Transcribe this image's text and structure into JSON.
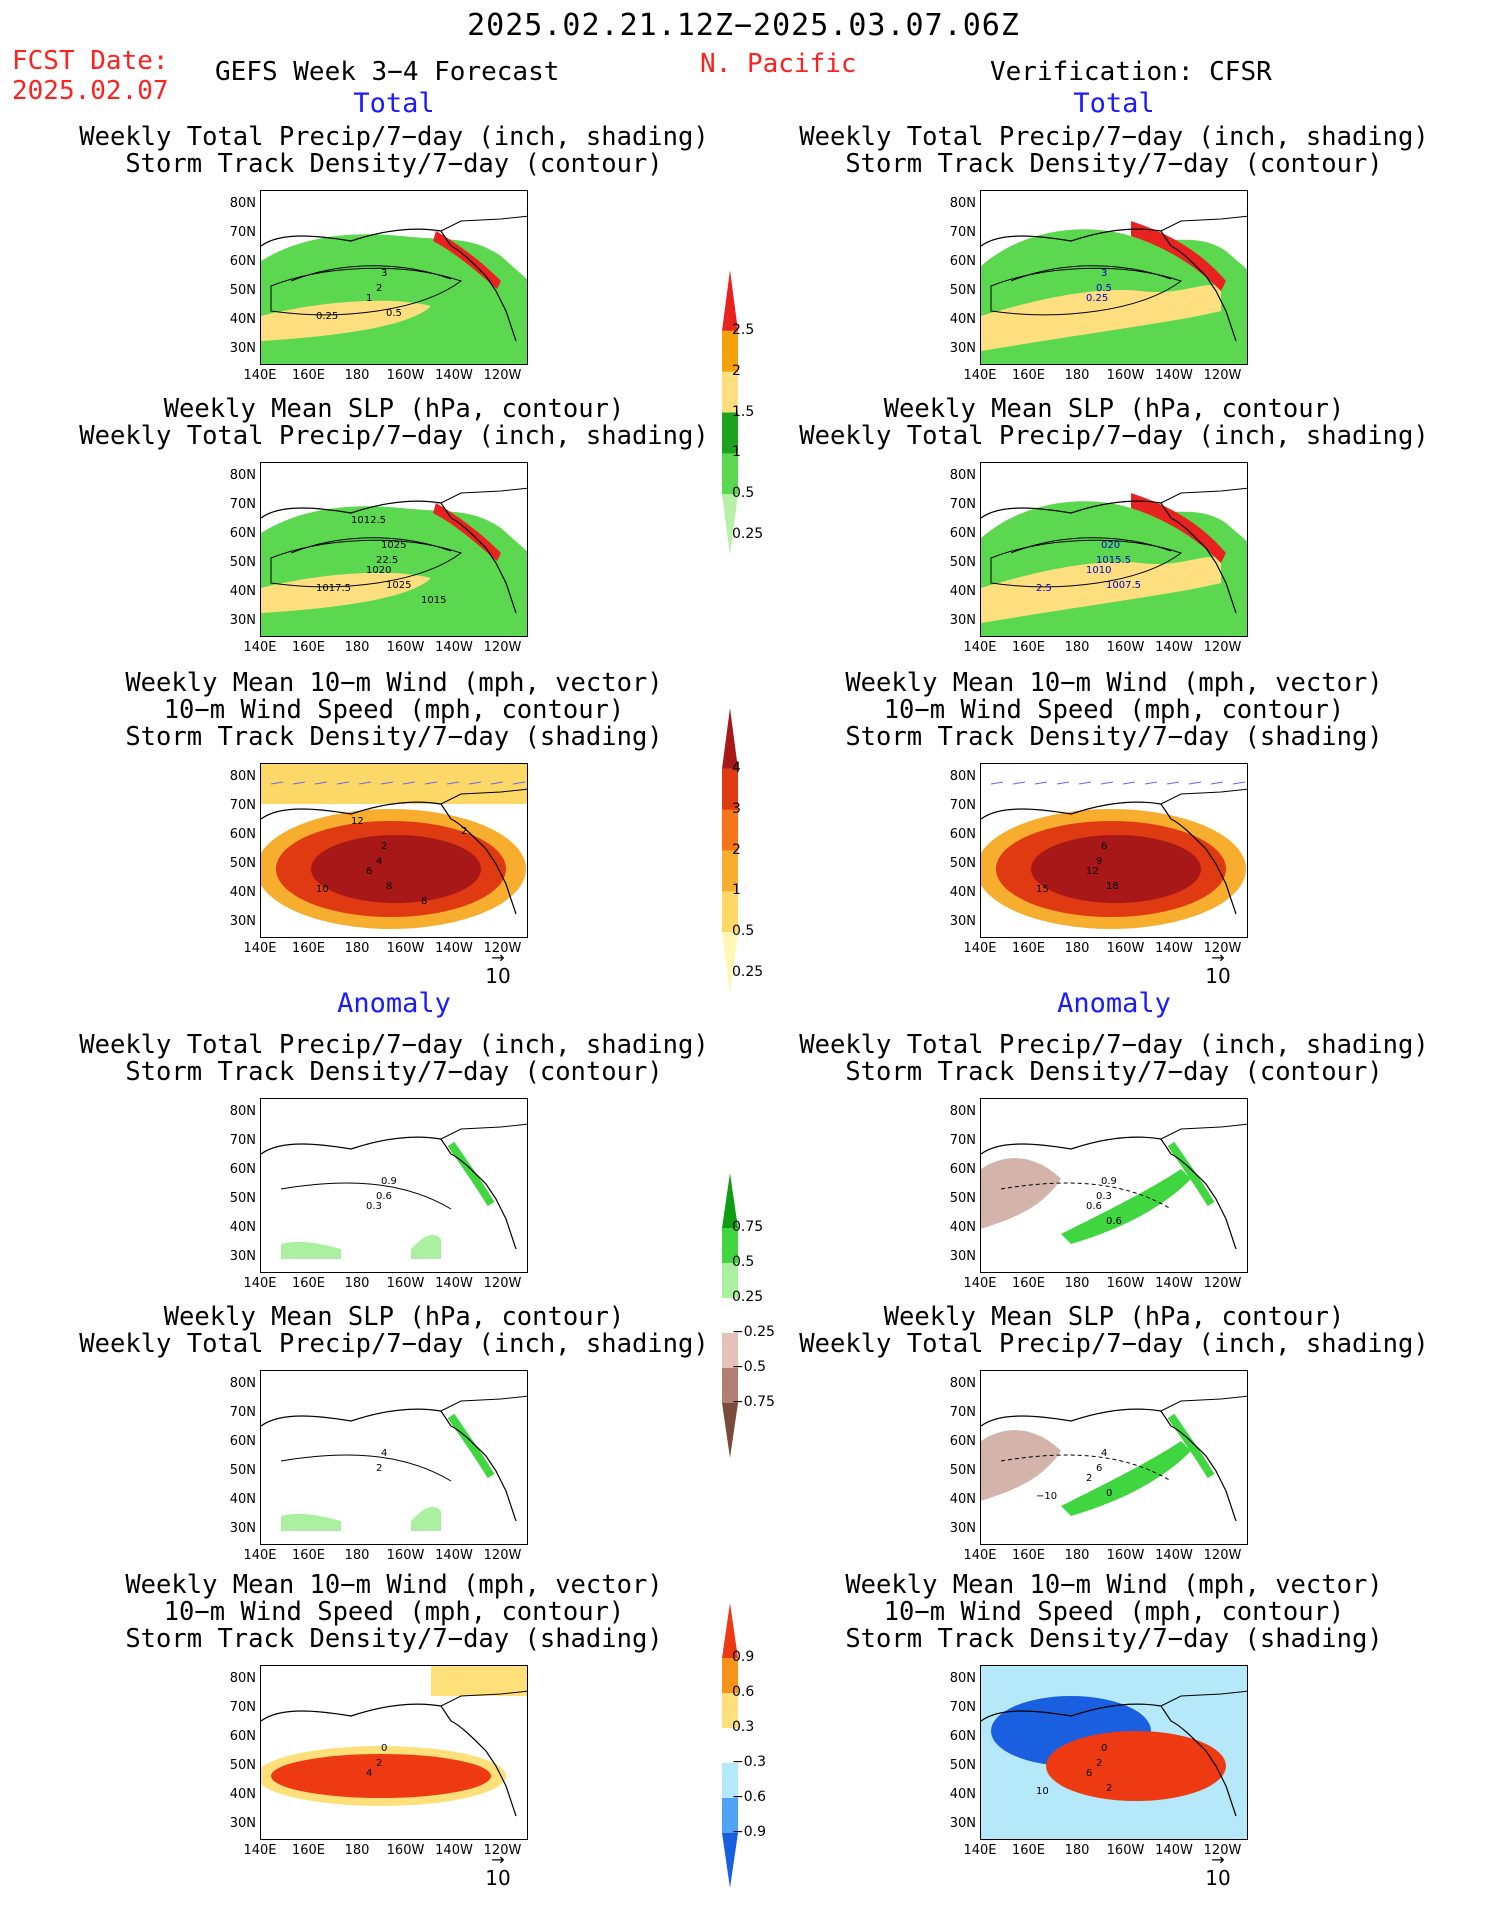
{
  "header": {
    "date_range": "2025.02.21.12Z−2025.03.07.06Z",
    "fcst_label": "FCST Date:",
    "fcst_date": "2025.02.07",
    "forecast_title": "GEFS Week 3−4 Forecast",
    "region": "N. Pacific",
    "verification": "Verification: CFSR"
  },
  "sections": {
    "total": "Total",
    "anomaly": "Anomaly"
  },
  "panels": {
    "precip_std": [
      "Weekly Total Precip/7−day (inch, shading)",
      "Storm Track Density/7−day (contour)"
    ],
    "slp_precip": [
      "Weekly Mean SLP (hPa, contour)",
      "Weekly Total Precip/7−day (inch, shading)"
    ],
    "wind_std": [
      "Weekly Mean 10−m Wind (mph, vector)",
      "10−m Wind Speed (mph, contour)",
      "Storm Track Density/7−day (shading)"
    ]
  },
  "axes": {
    "lat_labels": [
      "80N",
      "70N",
      "60N",
      "50N",
      "40N",
      "30N"
    ],
    "lon_labels": [
      "140E",
      "160E",
      "180",
      "160W",
      "140W",
      "120W"
    ]
  },
  "ref_vector": "10",
  "colorbars": {
    "precip_total": {
      "labels": [
        "2.5",
        "2",
        "1.5",
        "1",
        "0.5",
        "0.25"
      ],
      "colors": [
        "#e8221e",
        "#f5a20a",
        "#fddf7f",
        "#1fa21f",
        "#5bd84f",
        "#b8f0a8"
      ]
    },
    "std_total": {
      "labels": [
        "4",
        "3",
        "2",
        "1",
        "0.5",
        "0.25"
      ],
      "colors": [
        "#a81818",
        "#e03a12",
        "#f5761a",
        "#f7ad2e",
        "#fcd867",
        "#fff7b3"
      ]
    },
    "precip_anom": {
      "labels": [
        "0.75",
        "0.5",
        "0.25",
        "−0.25",
        "−0.5",
        "−0.75"
      ],
      "colors": [
        "#0f9e12",
        "#40d640",
        "#aaf0a0",
        "#ffffff",
        "#e5c2b9",
        "#b28072",
        "#7a4b3a"
      ]
    },
    "std_anom": {
      "labels": [
        "0.9",
        "0.6",
        "0.3",
        "−0.3",
        "−0.6",
        "−0.9"
      ],
      "colors": [
        "#ee3a12",
        "#f7931a",
        "#fde07a",
        "#ffffff",
        "#b5e8f8",
        "#4ea4f2",
        "#1a5fe0"
      ]
    }
  },
  "contour_labels": {
    "p1L": [
      "3",
      "2",
      "1",
      "0.5",
      "0.25"
    ],
    "p1R": [
      "3",
      "0.5",
      "0.25"
    ],
    "p2L": [
      "1025",
      "22.5",
      "1020",
      "1025",
      "1017.5",
      "1012.5",
      "1015"
    ],
    "p2R": [
      "020",
      "1015.5",
      "1010",
      "1007.5",
      "2.5"
    ],
    "p3L": [
      "2",
      "4",
      "6",
      "8",
      "10",
      "12",
      "8",
      "2"
    ],
    "p3R": [
      "6",
      "9",
      "12",
      "18",
      "15"
    ],
    "p4L": [
      "0.9",
      "0.6",
      "0.3"
    ],
    "p4R": [
      "0.9",
      "0.3",
      "0.6",
      "0.6"
    ],
    "p5L": [
      "4",
      "2"
    ],
    "p5R": [
      "4",
      "6",
      "2",
      "0",
      "−10"
    ],
    "p6L": [
      "0",
      "2",
      "4"
    ],
    "p6R": [
      "0",
      "2",
      "6",
      "2",
      "10"
    ]
  }
}
